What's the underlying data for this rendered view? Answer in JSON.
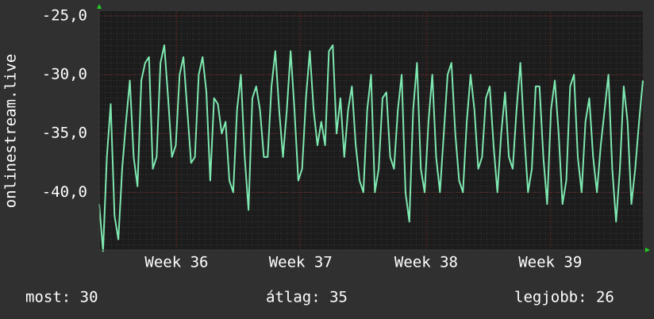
{
  "chart_data": {
    "type": "line",
    "ylabel": "onlinestream.live",
    "ylim": [
      -44.9,
      -24.6
    ],
    "yticks": [
      {
        "value": -25,
        "label": "-25,0"
      },
      {
        "value": -30,
        "label": "-30,0"
      },
      {
        "value": -35,
        "label": "-35,0"
      },
      {
        "value": -40,
        "label": "-40,0"
      }
    ],
    "xlim": [
      0,
      710
    ],
    "xticks": [
      {
        "value": 101,
        "label": "Week 36"
      },
      {
        "value": 263,
        "label": "Week 37"
      },
      {
        "value": 427,
        "label": "Week 38"
      },
      {
        "value": 589,
        "label": "Week 39"
      }
    ],
    "grid": true,
    "x": [
      0,
      5,
      10,
      15,
      20,
      25,
      30,
      35,
      40,
      45,
      50,
      55,
      60,
      65,
      70,
      75,
      80,
      85,
      90,
      95,
      100,
      105,
      110,
      115,
      120,
      125,
      130,
      135,
      140,
      145,
      150,
      155,
      160,
      165,
      170,
      175,
      180,
      185,
      190,
      195,
      200,
      205,
      210,
      215,
      220,
      225,
      230,
      235,
      240,
      245,
      250,
      255,
      260,
      265,
      270,
      275,
      280,
      285,
      290,
      295,
      300,
      305,
      310,
      315,
      320,
      325,
      330,
      335,
      340,
      345,
      350,
      355,
      360,
      365,
      370,
      375,
      380,
      385,
      390,
      395,
      400,
      405,
      410,
      415,
      420,
      425,
      430,
      435,
      440,
      445,
      450,
      455,
      460,
      465,
      470,
      475,
      480,
      485,
      490,
      495,
      500,
      505,
      510,
      515,
      520,
      525,
      530,
      535,
      540,
      545,
      550,
      555,
      560,
      565,
      570,
      575,
      580,
      585,
      590,
      595,
      600,
      605,
      610,
      615,
      620,
      625,
      630,
      635,
      640,
      645,
      650,
      655,
      660,
      665,
      670,
      675,
      680,
      685,
      690,
      695,
      700,
      705,
      710
    ],
    "series": [
      {
        "color": "#7ee8b0",
        "values": [
          -41,
          -45,
          -37,
          -32.5,
          -42,
          -44,
          -38,
          -34,
          -30.5,
          -37,
          -39.5,
          -30.5,
          -29,
          -28.5,
          -38,
          -37,
          -29,
          -27.5,
          -32,
          -37,
          -36,
          -30,
          -28.5,
          -33,
          -37.5,
          -37,
          -30,
          -28.5,
          -31.5,
          -39,
          -32,
          -32.5,
          -35,
          -34,
          -39,
          -40,
          -33,
          -30,
          -37,
          -41.5,
          -32,
          -31,
          -33,
          -37,
          -37,
          -31,
          -28,
          -33,
          -37,
          -33,
          -28,
          -33,
          -39,
          -38,
          -32,
          -28,
          -33,
          -36,
          -34,
          -36,
          -28,
          -27.5,
          -35,
          -32,
          -37,
          -33,
          -31,
          -36,
          -39,
          -40,
          -33,
          -30,
          -40,
          -38,
          -32,
          -31.5,
          -37,
          -38,
          -33,
          -30,
          -40,
          -42.5,
          -33,
          -29,
          -38,
          -40,
          -34,
          -30,
          -37,
          -40,
          -35,
          -30,
          -29,
          -35,
          -39,
          -40,
          -34,
          -30,
          -33,
          -38,
          -37,
          -32,
          -31,
          -36,
          -40,
          -35,
          -31.5,
          -37,
          -38,
          -33,
          -29,
          -35,
          -40,
          -38,
          -31,
          -31,
          -37,
          -41,
          -33,
          -30.5,
          -35,
          -41,
          -39,
          -31,
          -30,
          -37,
          -40,
          -34,
          -32,
          -37,
          -40,
          -36,
          -33,
          -30,
          -38,
          -42.5,
          -38,
          -31,
          -34,
          -41,
          -38,
          -34,
          -30.5
        ]
      }
    ],
    "footer": [
      "most: 30",
      "átlag: 35",
      "legjobb: 26"
    ]
  }
}
